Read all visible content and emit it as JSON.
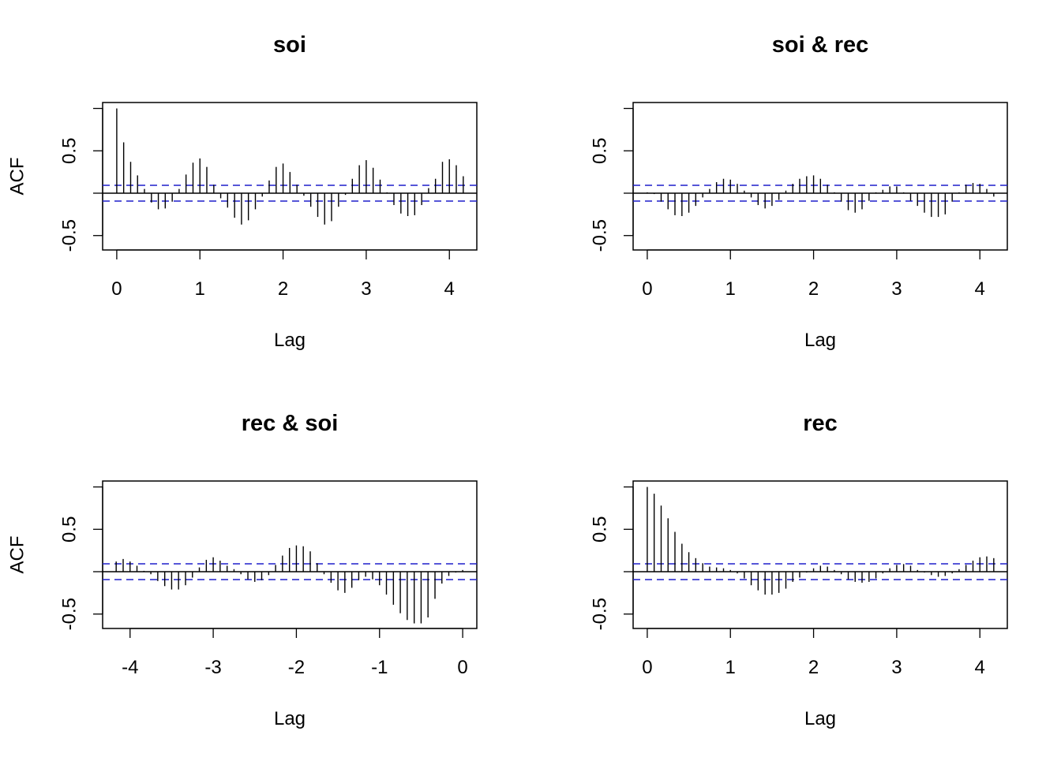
{
  "chart_data": [
    {
      "type": "bar",
      "subtype": "acf-lollipop",
      "title": "soi",
      "xlabel": "Lag",
      "ylabel": "ACF",
      "xlim": [
        -0.17,
        4.33
      ],
      "ylim": [
        -0.67,
        1.07
      ],
      "xticks": [
        0,
        1,
        2,
        3,
        4
      ],
      "xtick_labels": [
        "0",
        "1",
        "2",
        "3",
        "4"
      ],
      "yticks": [
        -0.5,
        0.5
      ],
      "ytick_labels": [
        "-0.5",
        "0.5"
      ],
      "conf_limit": 0.093,
      "lag": [
        0,
        0.083,
        0.167,
        0.25,
        0.333,
        0.417,
        0.5,
        0.583,
        0.667,
        0.75,
        0.833,
        0.917,
        1,
        1.083,
        1.167,
        1.25,
        1.333,
        1.417,
        1.5,
        1.583,
        1.667,
        1.75,
        1.833,
        1.917,
        2,
        2.083,
        2.167,
        2.25,
        2.333,
        2.417,
        2.5,
        2.583,
        2.667,
        2.75,
        2.833,
        2.917,
        3,
        3.083,
        3.167,
        3.25,
        3.333,
        3.417,
        3.5,
        3.583,
        3.667,
        3.75,
        3.833,
        3.917,
        4,
        4.083,
        4.167
      ],
      "acf": [
        1.0,
        0.6,
        0.37,
        0.21,
        0.05,
        -0.11,
        -0.19,
        -0.18,
        -0.1,
        0.05,
        0.22,
        0.36,
        0.41,
        0.31,
        0.1,
        -0.06,
        -0.17,
        -0.29,
        -0.37,
        -0.32,
        -0.19,
        -0.04,
        0.15,
        0.31,
        0.35,
        0.25,
        0.1,
        -0.03,
        -0.16,
        -0.28,
        -0.37,
        -0.33,
        -0.16,
        -0.02,
        0.17,
        0.33,
        0.39,
        0.3,
        0.16,
        0.01,
        -0.14,
        -0.24,
        -0.27,
        -0.26,
        -0.14,
        0.06,
        0.17,
        0.37,
        0.4,
        0.33,
        0.2
      ]
    },
    {
      "type": "bar",
      "subtype": "acf-lollipop",
      "title": "soi & rec",
      "xlabel": "Lag",
      "ylabel": "",
      "xlim": [
        -0.17,
        4.33
      ],
      "ylim": [
        -0.67,
        1.07
      ],
      "xticks": [
        0,
        1,
        2,
        3,
        4
      ],
      "xtick_labels": [
        "0",
        "1",
        "2",
        "3",
        "4"
      ],
      "yticks": [
        -0.5,
        0.5
      ],
      "ytick_labels": [
        "-0.5",
        "0.5"
      ],
      "conf_limit": 0.093,
      "lag": [
        0,
        0.083,
        0.167,
        0.25,
        0.333,
        0.417,
        0.5,
        0.583,
        0.667,
        0.75,
        0.833,
        0.917,
        1,
        1.083,
        1.167,
        1.25,
        1.333,
        1.417,
        1.5,
        1.583,
        1.667,
        1.75,
        1.833,
        1.917,
        2,
        2.083,
        2.167,
        2.25,
        2.333,
        2.417,
        2.5,
        2.583,
        2.667,
        2.75,
        2.833,
        2.917,
        3,
        3.083,
        3.167,
        3.25,
        3.333,
        3.417,
        3.5,
        3.583,
        3.667,
        3.75,
        3.833,
        3.917,
        4,
        4.083,
        4.167
      ],
      "acf": [
        0.01,
        -0.01,
        -0.1,
        -0.19,
        -0.26,
        -0.27,
        -0.23,
        -0.15,
        -0.05,
        0.05,
        0.13,
        0.17,
        0.16,
        0.11,
        0.03,
        -0.05,
        -0.14,
        -0.18,
        -0.15,
        -0.08,
        0.03,
        0.11,
        0.17,
        0.2,
        0.21,
        0.17,
        0.1,
        0.01,
        -0.1,
        -0.2,
        -0.23,
        -0.19,
        -0.09,
        0.01,
        0.04,
        0.08,
        0.08,
        0.01,
        -0.09,
        -0.15,
        -0.23,
        -0.28,
        -0.28,
        -0.25,
        -0.1,
        0.01,
        0.1,
        0.12,
        0.11,
        0.05,
        -0.04
      ]
    },
    {
      "type": "bar",
      "subtype": "acf-lollipop",
      "title": "rec & soi",
      "xlabel": "Lag",
      "ylabel": "ACF",
      "xlim": [
        -4.33,
        0.17
      ],
      "ylim": [
        -0.67,
        1.07
      ],
      "xticks": [
        -4,
        -3,
        -2,
        -1,
        0
      ],
      "xtick_labels": [
        "-4",
        "-3",
        "-2",
        "-1",
        "0"
      ],
      "yticks": [
        -0.5,
        0.5
      ],
      "ytick_labels": [
        "-0.5",
        "0.5"
      ],
      "conf_limit": 0.093,
      "lag": [
        -4.167,
        -4.083,
        -4,
        -3.917,
        -3.833,
        -3.75,
        -3.667,
        -3.583,
        -3.5,
        -3.417,
        -3.333,
        -3.25,
        -3.167,
        -3.083,
        -3,
        -2.917,
        -2.833,
        -2.75,
        -2.667,
        -2.583,
        -2.5,
        -2.417,
        -2.333,
        -2.25,
        -2.167,
        -2.083,
        -2,
        -1.917,
        -1.833,
        -1.75,
        -1.667,
        -1.583,
        -1.5,
        -1.417,
        -1.333,
        -1.25,
        -1.167,
        -1.083,
        -1,
        -0.917,
        -0.833,
        -0.75,
        -0.667,
        -0.583,
        -0.5,
        -0.417,
        -0.333,
        -0.25,
        -0.167,
        -0.083,
        0
      ],
      "acf": [
        0.12,
        0.15,
        0.12,
        0.07,
        0.01,
        -0.03,
        -0.11,
        -0.17,
        -0.21,
        -0.21,
        -0.16,
        -0.07,
        0.05,
        0.14,
        0.17,
        0.13,
        0.07,
        0.03,
        -0.03,
        -0.09,
        -0.12,
        -0.1,
        -0.04,
        0.08,
        0.19,
        0.28,
        0.31,
        0.3,
        0.24,
        0.1,
        -0.03,
        -0.13,
        -0.22,
        -0.25,
        -0.19,
        -0.1,
        -0.06,
        -0.09,
        -0.16,
        -0.27,
        -0.39,
        -0.49,
        -0.57,
        -0.61,
        -0.61,
        -0.54,
        -0.32,
        -0.14,
        -0.05,
        -0.01,
        0.02
      ]
    },
    {
      "type": "bar",
      "subtype": "acf-lollipop",
      "title": "rec",
      "xlabel": "Lag",
      "ylabel": "",
      "xlim": [
        -0.17,
        4.33
      ],
      "ylim": [
        -0.67,
        1.07
      ],
      "xticks": [
        0,
        1,
        2,
        3,
        4
      ],
      "xtick_labels": [
        "0",
        "1",
        "2",
        "3",
        "4"
      ],
      "yticks": [
        -0.5,
        0.5
      ],
      "ytick_labels": [
        "-0.5",
        "0.5"
      ],
      "conf_limit": 0.093,
      "lag": [
        0,
        0.083,
        0.167,
        0.25,
        0.333,
        0.417,
        0.5,
        0.583,
        0.667,
        0.75,
        0.833,
        0.917,
        1,
        1.083,
        1.167,
        1.25,
        1.333,
        1.417,
        1.5,
        1.583,
        1.667,
        1.75,
        1.833,
        1.917,
        2,
        2.083,
        2.167,
        2.25,
        2.333,
        2.417,
        2.5,
        2.583,
        2.667,
        2.75,
        2.833,
        2.917,
        3,
        3.083,
        3.167,
        3.25,
        3.333,
        3.417,
        3.5,
        3.583,
        3.667,
        3.75,
        3.833,
        3.917,
        4,
        4.083,
        4.167
      ],
      "acf": [
        1.0,
        0.92,
        0.78,
        0.63,
        0.47,
        0.33,
        0.23,
        0.16,
        0.1,
        0.06,
        0.05,
        0.04,
        0.02,
        -0.02,
        -0.08,
        -0.16,
        -0.22,
        -0.27,
        -0.27,
        -0.25,
        -0.2,
        -0.12,
        -0.07,
        -0.01,
        0.04,
        0.07,
        0.06,
        0.02,
        -0.03,
        -0.09,
        -0.12,
        -0.13,
        -0.12,
        -0.08,
        -0.02,
        0.04,
        0.08,
        0.09,
        0.07,
        0.02,
        -0.01,
        -0.04,
        -0.06,
        -0.05,
        -0.02,
        0.03,
        0.08,
        0.13,
        0.17,
        0.18,
        0.16
      ]
    }
  ],
  "colors": {
    "spike": "#000000",
    "confidence_band": "#1f1fcc",
    "frame": "#000000",
    "background": "#ffffff"
  }
}
